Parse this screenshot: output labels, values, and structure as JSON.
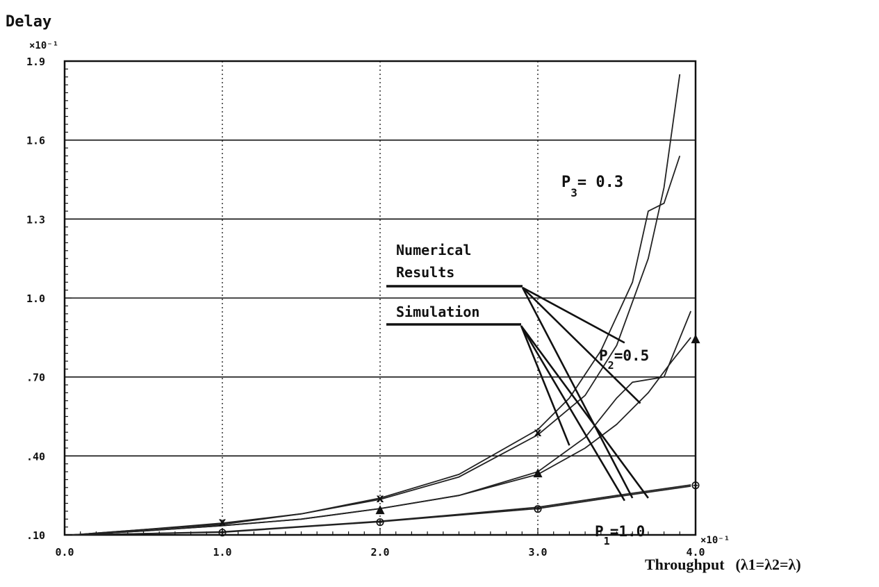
{
  "chart_data": {
    "type": "line",
    "title": "",
    "ylabel": "Delay",
    "xlabel": {
      "prefix": "Throughput",
      "formula": "(λ1=λ2=λ)"
    },
    "x_multiplier": "×10⁻¹",
    "y_multiplier": "×10⁻¹",
    "xlim": [
      0.0,
      4.0
    ],
    "ylim": [
      0.1,
      1.9
    ],
    "x_ticks": [
      0.0,
      1.0,
      2.0,
      3.0,
      4.0
    ],
    "x_tick_labels": [
      "0.0",
      "1.0",
      "2.0",
      "3.0",
      "4.0"
    ],
    "y_ticks": [
      0.1,
      0.4,
      0.7,
      1.0,
      1.3,
      1.6,
      1.9
    ],
    "y_tick_labels": [
      ".10",
      ".40",
      ".70",
      "1.0",
      "1.3",
      "1.6",
      "1.9"
    ],
    "grid": true,
    "legend": [
      {
        "text": [
          "Numerical",
          "Results"
        ]
      },
      {
        "text": [
          "Simulation"
        ]
      }
    ],
    "curve_labels": [
      {
        "base": "P",
        "sub": "3",
        "rest": "= 0.3"
      },
      {
        "base": "P",
        "sub": "2",
        "rest": "=0.5"
      },
      {
        "base": "P",
        "sub": "1",
        "rest": "=1.0"
      }
    ],
    "series": [
      {
        "x": [
          0.05,
          0.5,
          1.0,
          1.5,
          2.0,
          2.5,
          3.0,
          3.3,
          3.5,
          3.7,
          3.8,
          3.9
        ],
        "y": [
          0.1,
          0.12,
          0.145,
          0.18,
          0.235,
          0.32,
          0.48,
          0.63,
          0.82,
          1.15,
          1.42,
          1.85
        ]
      },
      {
        "x": [
          0.05,
          0.5,
          1.0,
          1.5,
          2.0,
          2.5,
          3.0,
          3.2,
          3.4,
          3.6,
          3.7,
          3.8,
          3.9
        ],
        "y": [
          0.1,
          0.12,
          0.14,
          0.18,
          0.24,
          0.33,
          0.5,
          0.62,
          0.8,
          1.06,
          1.33,
          1.36,
          1.54
        ]
      },
      {
        "x": [
          0.05,
          0.5,
          1.0,
          1.5,
          2.0,
          2.5,
          3.0,
          3.3,
          3.5,
          3.7,
          3.85,
          3.97
        ],
        "y": [
          0.1,
          0.115,
          0.135,
          0.16,
          0.2,
          0.25,
          0.33,
          0.43,
          0.52,
          0.64,
          0.76,
          0.85
        ]
      },
      {
        "x": [
          0.05,
          0.5,
          1.0,
          1.5,
          2.0,
          2.5,
          3.0,
          3.3,
          3.5,
          3.6,
          3.8,
          3.97
        ],
        "y": [
          0.1,
          0.115,
          0.135,
          0.16,
          0.2,
          0.25,
          0.34,
          0.47,
          0.62,
          0.68,
          0.7,
          0.95
        ]
      },
      {
        "x": [
          0.05,
          0.5,
          1.0,
          1.5,
          2.0,
          2.5,
          3.0,
          3.5,
          3.97
        ],
        "y": [
          0.1,
          0.105,
          0.11,
          0.13,
          0.15,
          0.175,
          0.2,
          0.245,
          0.285
        ]
      },
      {
        "x": [
          0.05,
          0.5,
          1.0,
          1.5,
          2.0,
          2.5,
          3.0,
          3.5,
          3.97
        ],
        "y": [
          0.1,
          0.105,
          0.112,
          0.132,
          0.152,
          0.178,
          0.205,
          0.25,
          0.29
        ]
      }
    ],
    "markers": [
      {
        "glyph": "x",
        "x": 3.0,
        "y": 0.49
      },
      {
        "glyph": "x",
        "x": 2.0,
        "y": 0.24
      },
      {
        "glyph": "x",
        "x": 1.0,
        "y": 0.15
      },
      {
        "glyph": "▲",
        "x": 3.0,
        "y": 0.34
      },
      {
        "glyph": "▲",
        "x": 2.0,
        "y": 0.2
      },
      {
        "glyph": "▲",
        "x": 4.0,
        "y": 0.85
      },
      {
        "glyph": "⊕",
        "x": 3.0,
        "y": 0.2
      },
      {
        "glyph": "⊕",
        "x": 2.0,
        "y": 0.15
      },
      {
        "glyph": "⊕",
        "x": 1.0,
        "y": 0.11
      },
      {
        "glyph": "⊕",
        "x": 4.0,
        "y": 0.29
      }
    ],
    "annotation_lines": {
      "numerical_targets": [
        [
          3.55,
          0.83
        ],
        [
          3.65,
          0.6
        ],
        [
          3.6,
          0.24
        ]
      ],
      "simulation_targets": [
        [
          3.2,
          0.44
        ],
        [
          3.55,
          0.23
        ],
        [
          3.7,
          0.24
        ]
      ]
    }
  }
}
